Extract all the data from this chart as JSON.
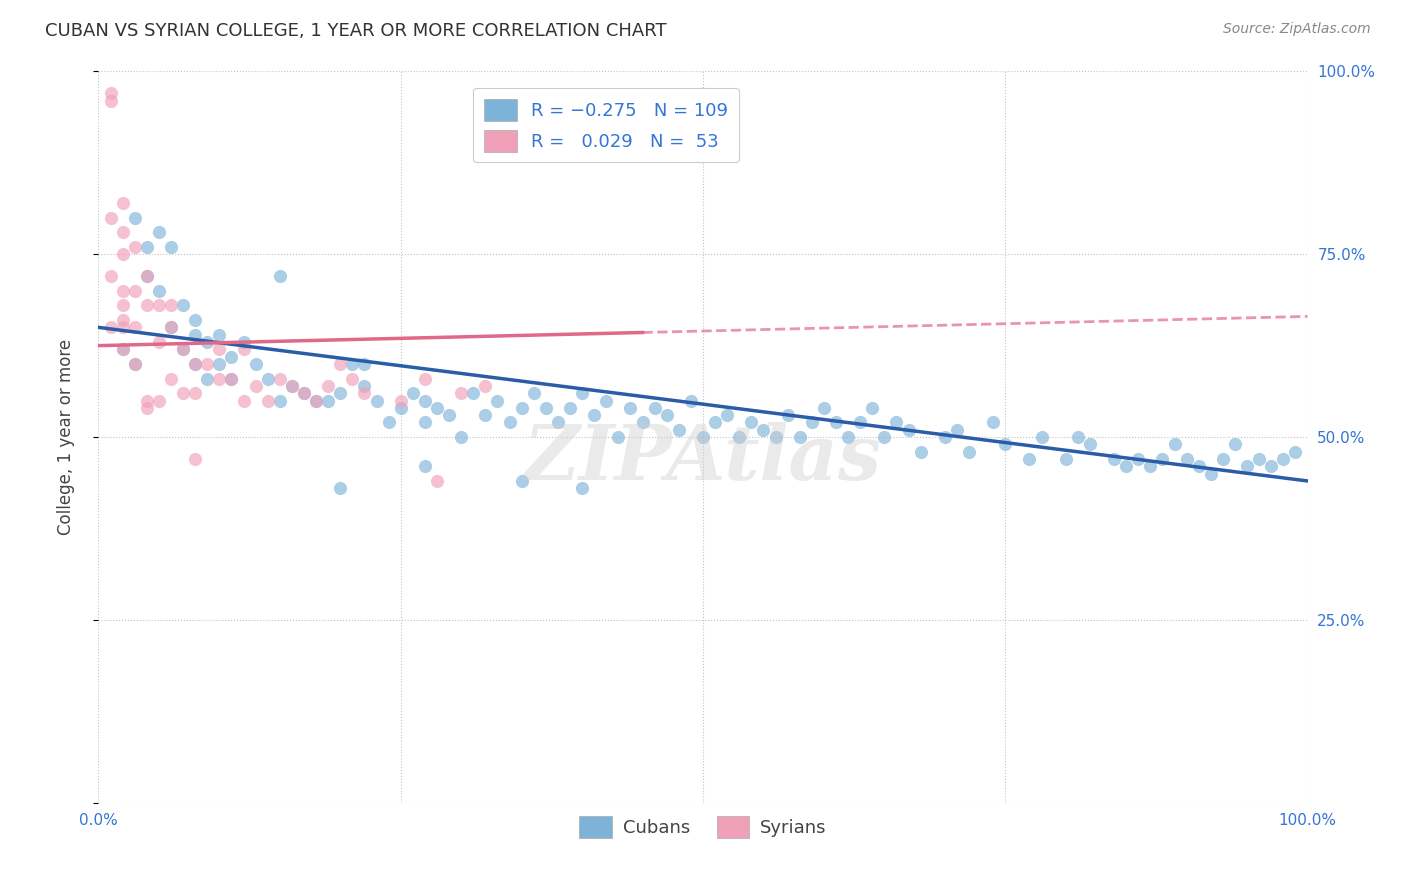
{
  "title": "CUBAN VS SYRIAN COLLEGE, 1 YEAR OR MORE CORRELATION CHART",
  "source": "Source: ZipAtlas.com",
  "ylabel": "College, 1 year or more",
  "watermark": "ZIPAtlas",
  "blue_color": "#7eb3d8",
  "pink_color": "#f0a0b8",
  "blue_line_color": "#2a5ca8",
  "pink_line_color": "#e06888",
  "legend_R_color": "#3575d4",
  "cubans_x": [
    2,
    3,
    4,
    4,
    5,
    5,
    6,
    6,
    7,
    7,
    8,
    8,
    9,
    9,
    10,
    10,
    11,
    11,
    12,
    13,
    14,
    15,
    16,
    17,
    18,
    19,
    20,
    21,
    22,
    23,
    24,
    25,
    26,
    27,
    27,
    28,
    29,
    30,
    31,
    32,
    33,
    34,
    35,
    36,
    37,
    38,
    39,
    40,
    41,
    42,
    43,
    44,
    45,
    46,
    47,
    48,
    49,
    50,
    51,
    52,
    53,
    54,
    55,
    56,
    57,
    58,
    59,
    60,
    61,
    62,
    63,
    64,
    65,
    66,
    67,
    68,
    70,
    71,
    72,
    74,
    75,
    77,
    78,
    80,
    81,
    82,
    84,
    85,
    86,
    87,
    88,
    89,
    90,
    91,
    92,
    93,
    94,
    95,
    96,
    97,
    98,
    99,
    20,
    27,
    35,
    40,
    22,
    15,
    8,
    3
  ],
  "cubans_y": [
    62,
    60,
    76,
    72,
    78,
    70,
    76,
    65,
    68,
    62,
    66,
    60,
    63,
    58,
    64,
    60,
    61,
    58,
    63,
    60,
    58,
    55,
    57,
    56,
    55,
    55,
    56,
    60,
    57,
    55,
    52,
    54,
    56,
    55,
    52,
    54,
    53,
    50,
    56,
    53,
    55,
    52,
    54,
    56,
    54,
    52,
    54,
    56,
    53,
    55,
    50,
    54,
    52,
    54,
    53,
    51,
    55,
    50,
    52,
    53,
    50,
    52,
    51,
    50,
    53,
    50,
    52,
    54,
    52,
    50,
    52,
    54,
    50,
    52,
    51,
    48,
    50,
    51,
    48,
    52,
    49,
    47,
    50,
    47,
    50,
    49,
    47,
    46,
    47,
    46,
    47,
    49,
    47,
    46,
    45,
    47,
    49,
    46,
    47,
    46,
    47,
    48,
    43,
    46,
    44,
    43,
    60,
    72,
    64,
    80
  ],
  "syrians_x": [
    1,
    1,
    1,
    2,
    2,
    2,
    2,
    2,
    2,
    3,
    3,
    3,
    4,
    4,
    4,
    5,
    5,
    5,
    6,
    6,
    7,
    7,
    8,
    8,
    9,
    10,
    10,
    11,
    12,
    13,
    14,
    15,
    16,
    17,
    18,
    19,
    20,
    21,
    22,
    25,
    27,
    30,
    32,
    2,
    1,
    3,
    1,
    2,
    4,
    6,
    8,
    12,
    28
  ],
  "syrians_y": [
    97,
    96,
    80,
    82,
    75,
    70,
    68,
    65,
    62,
    76,
    70,
    65,
    72,
    68,
    55,
    68,
    63,
    55,
    68,
    58,
    62,
    56,
    56,
    60,
    60,
    62,
    58,
    58,
    55,
    57,
    55,
    58,
    57,
    56,
    55,
    57,
    60,
    58,
    56,
    55,
    58,
    56,
    57,
    66,
    65,
    60,
    72,
    78,
    54,
    65,
    47,
    62,
    44
  ]
}
